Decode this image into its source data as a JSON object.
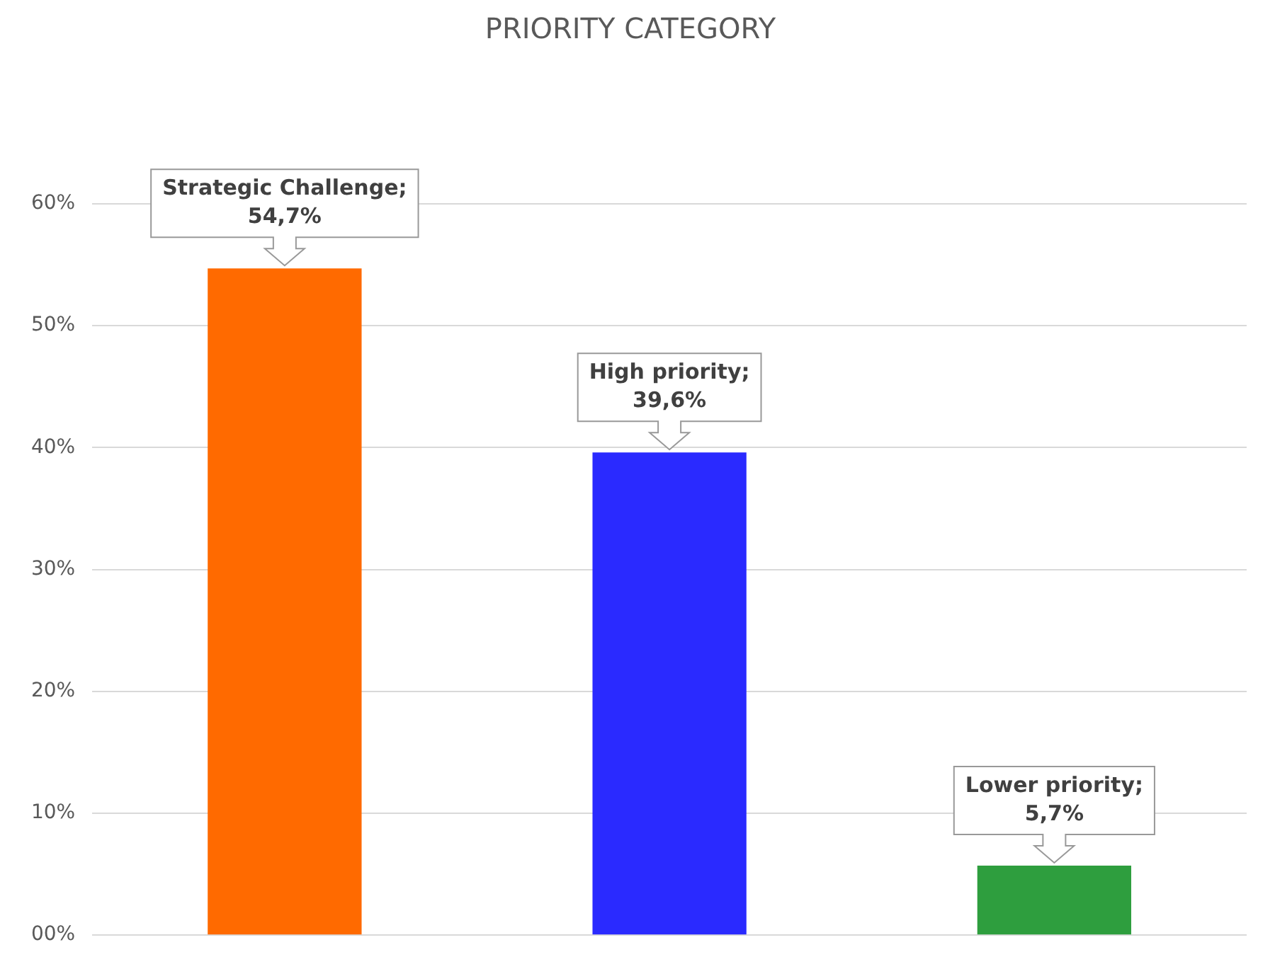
{
  "chart_data": {
    "type": "bar",
    "title": "PRIORITY CATEGORY",
    "categories": [
      null,
      null,
      null
    ],
    "values": [
      54.7,
      39.6,
      5.7
    ],
    "colors": [
      "#ff6a00",
      "#2a2aff",
      "#2e9e3e"
    ],
    "value_labels": [
      "Strategic Challenge;\n54,7%",
      "High priority;\n39,6%",
      "Lower priority;\n5,7%"
    ],
    "ylim": [
      0,
      60
    ],
    "yticks": [
      {
        "value": 0,
        "label": "00%"
      },
      {
        "value": 10,
        "label": "10%"
      },
      {
        "value": 20,
        "label": "20%"
      },
      {
        "value": 30,
        "label": "30%"
      },
      {
        "value": 40,
        "label": "40%"
      },
      {
        "value": 50,
        "label": "50%"
      },
      {
        "value": 60,
        "label": "60%"
      }
    ],
    "grid": "y",
    "tick_labels": "y",
    "legend": false
  }
}
